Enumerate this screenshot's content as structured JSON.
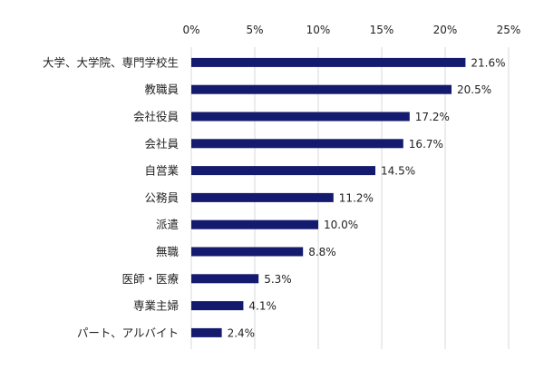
{
  "chart_data": {
    "type": "bar",
    "orientation": "horizontal",
    "title": "",
    "xlabel": "",
    "ylabel": "",
    "categories": [
      "大学、大学院、専門学校生",
      "教職員",
      "会社役員",
      "会社員",
      "自営業",
      "公務員",
      "派遣",
      "無職",
      "医師・医療",
      "専業主婦",
      "パート、アルバイト"
    ],
    "values": [
      21.6,
      20.5,
      17.2,
      16.7,
      14.5,
      11.2,
      10.0,
      8.8,
      5.3,
      4.1,
      2.4
    ],
    "value_labels": [
      "21.6%",
      "20.5%",
      "17.2%",
      "16.7%",
      "14.5%",
      "11.2%",
      "10.0%",
      "8.8%",
      "5.3%",
      "4.1%",
      "2.4%"
    ],
    "xlim": [
      0,
      25
    ],
    "x_ticks": [
      0,
      5,
      10,
      15,
      20,
      25
    ],
    "x_tick_labels": [
      "0%",
      "5%",
      "10%",
      "15%",
      "20%",
      "25%"
    ],
    "x_axis_position": "top",
    "grid": "vertical",
    "legend": "none",
    "bar_color": "#141A6E",
    "grid_color": "#D9D9D9"
  }
}
